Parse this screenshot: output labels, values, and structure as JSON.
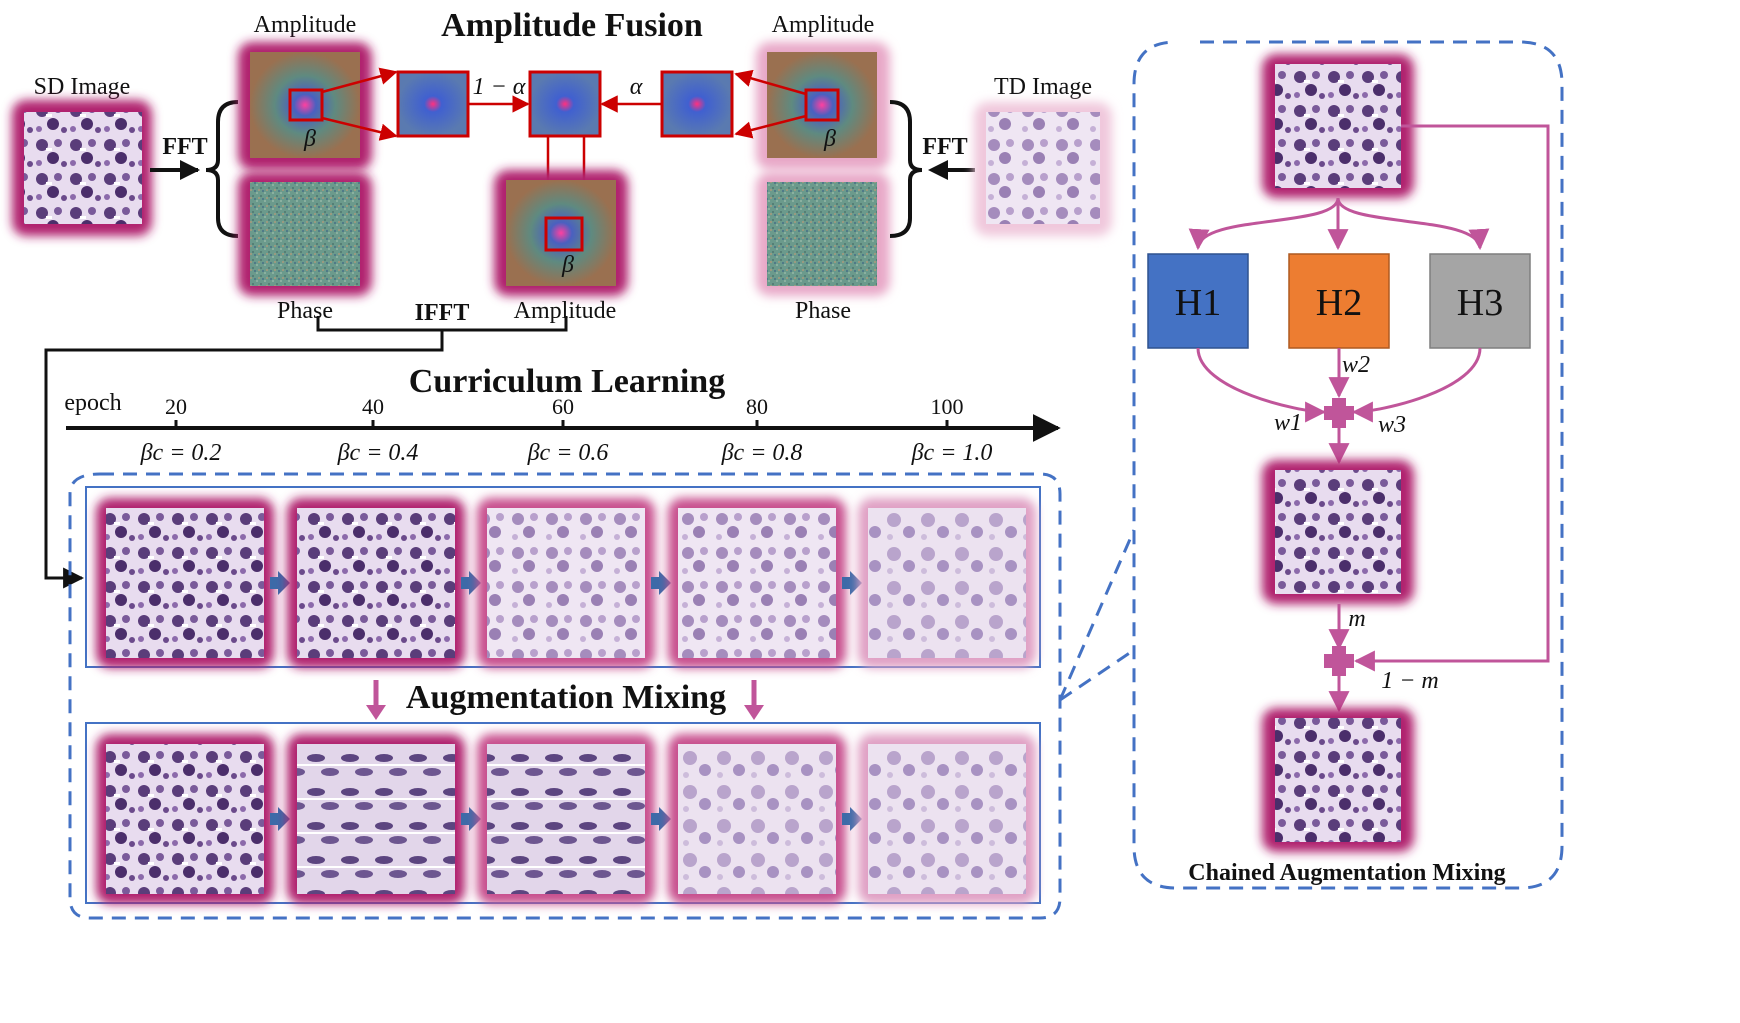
{
  "labels": {
    "sd_image": "SD Image",
    "td_image": "TD Image",
    "amp_top_left": "Amplitude",
    "amp_top_right": "Amplitude",
    "phase_left": "Phase",
    "phase_right": "Phase",
    "amp_bottom": "Amplitude",
    "fft_left": "FFT",
    "fft_right": "FFT",
    "ifft": "IFFT",
    "beta_1": "β",
    "beta_2": "β",
    "beta_3": "β",
    "one_minus_alpha": "1 − α",
    "alpha": "α"
  },
  "titles": {
    "amplitude_fusion": "Amplitude Fusion",
    "curriculum_learning": "Curriculum Learning",
    "augmentation_mixing": "Augmentation Mixing",
    "chained_augmentation_mixing": "Chained Augmentation Mixing"
  },
  "timeline": {
    "axis_label": "epoch",
    "ticks": [
      {
        "epoch": "20",
        "beta": "βc = 0.2"
      },
      {
        "epoch": "40",
        "beta": "βc = 0.4"
      },
      {
        "epoch": "60",
        "beta": "βc = 0.6"
      },
      {
        "epoch": "80",
        "beta": "βc = 0.8"
      },
      {
        "epoch": "100",
        "beta": "βc = 1.0"
      }
    ]
  },
  "chain": {
    "h1": "H1",
    "h2": "H2",
    "h3": "H3",
    "w1": "w1",
    "w2": "w2",
    "w3": "w3",
    "m": "m",
    "one_minus_m": "1 − m"
  },
  "colors": {
    "h1": "#4472c4",
    "h2": "#ed7d31",
    "h3": "#a5a5a5",
    "mix_line": "#c0559a",
    "dashed_border": "#4472c4",
    "fusion_box": "#cc0000",
    "glow": "#b0206e"
  }
}
